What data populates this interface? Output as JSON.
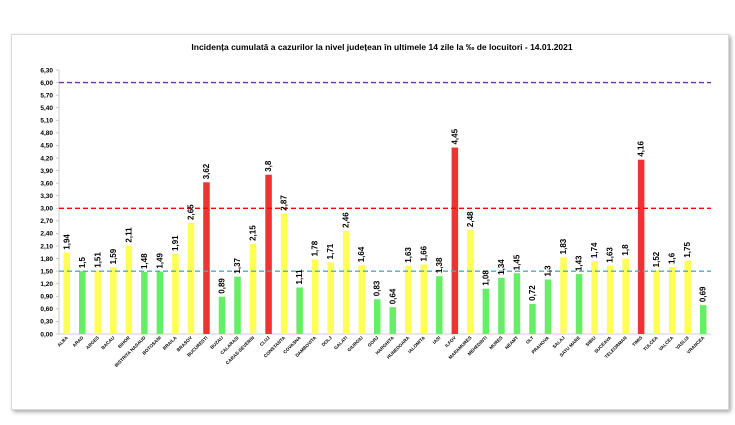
{
  "chart_data": {
    "type": "bar",
    "title": "Incidența cumulată a cazurilor la nivel județean în ultimele 14 zile   la ‰ de locuitori  - 14.01.2021",
    "xlabel": "",
    "ylabel": "",
    "ylim": [
      0,
      6.3
    ],
    "yticks": [
      "0,00",
      "0,30",
      "0,60",
      "0,90",
      "1,20",
      "1,50",
      "1,80",
      "2,10",
      "2,40",
      "2,70",
      "3,00",
      "3,30",
      "3,60",
      "3,90",
      "4,20",
      "4,50",
      "4,80",
      "5,10",
      "5,40",
      "5,70",
      "6,00",
      "6,30"
    ],
    "ytick_values": [
      0,
      0.3,
      0.6,
      0.9,
      1.2,
      1.5,
      1.8,
      2.1,
      2.4,
      2.7,
      3.0,
      3.3,
      3.6,
      3.9,
      4.2,
      4.5,
      4.8,
      5.1,
      5.4,
      5.7,
      6.0,
      6.3
    ],
    "categories": [
      "ALBA",
      "ARAD",
      "ARGES",
      "BACAU",
      "BIHOR",
      "BISTRITA NASAUD",
      "BOTOSANI",
      "BRAILA",
      "BRASOV",
      "BUCURESTI",
      "BUZAU",
      "CALARASI",
      "CARAS-SEVERIN",
      "CLUJ",
      "CONSTANTA",
      "COVASNA",
      "DAMBOVITA",
      "DOLJ",
      "GALATI",
      "GIURGIU",
      "GORJ",
      "HARGHITA",
      "HUNEDOARA",
      "IALOMITA",
      "IASI",
      "ILFOV",
      "MARAMURES",
      "MEHEDINTI",
      "MURES",
      "NEAMT",
      "OLT",
      "PRAHOVA",
      "SALAJ",
      "SATU MARE",
      "SIBIU",
      "SUCEAVA",
      "TELEORMAN",
      "TIMIS",
      "TULCEA",
      "VALCEA",
      "VASLUI",
      "VRANCEA"
    ],
    "values": [
      1.94,
      1.5,
      1.51,
      1.59,
      2.11,
      1.48,
      1.49,
      1.91,
      2.65,
      3.62,
      0.89,
      1.37,
      2.15,
      3.8,
      2.87,
      1.11,
      1.78,
      1.71,
      2.46,
      1.64,
      0.83,
      0.64,
      1.63,
      1.66,
      1.38,
      4.45,
      2.48,
      1.08,
      1.34,
      1.45,
      0.72,
      1.3,
      1.83,
      1.43,
      1.74,
      1.63,
      1.8,
      4.16,
      1.52,
      1.6,
      1.75,
      0.69
    ],
    "value_labels": [
      "1,94",
      "1,5",
      "1,51",
      "1,59",
      "2,11",
      "1,48",
      "1,49",
      "1,91",
      "2,65",
      "3,62",
      "0,89",
      "1,37",
      "2,15",
      "3,8",
      "2,87",
      "1,11",
      "1,78",
      "1,71",
      "2,46",
      "1,64",
      "0,83",
      "0,64",
      "1,63",
      "1,66",
      "1,38",
      "4,45",
      "2,48",
      "1,08",
      "1,34",
      "1,45",
      "0,72",
      "1,3",
      "1,83",
      "1,43",
      "1,74",
      "1,63",
      "1,8",
      "4,16",
      "1,52",
      "1,6",
      "1,75",
      "0,69"
    ],
    "thresholds": [
      {
        "value": 6.0,
        "color": "#7030a0",
        "style": "dashed"
      },
      {
        "value": 3.0,
        "color": "#ff0000",
        "style": "dashed"
      },
      {
        "value": 1.5,
        "color": "#4bacc6",
        "style": "dashed"
      }
    ],
    "colors": {
      "green": "#66ee66",
      "yellow": "#ffff55",
      "red": "#ee3333"
    },
    "grid": false,
    "legend": "none"
  }
}
